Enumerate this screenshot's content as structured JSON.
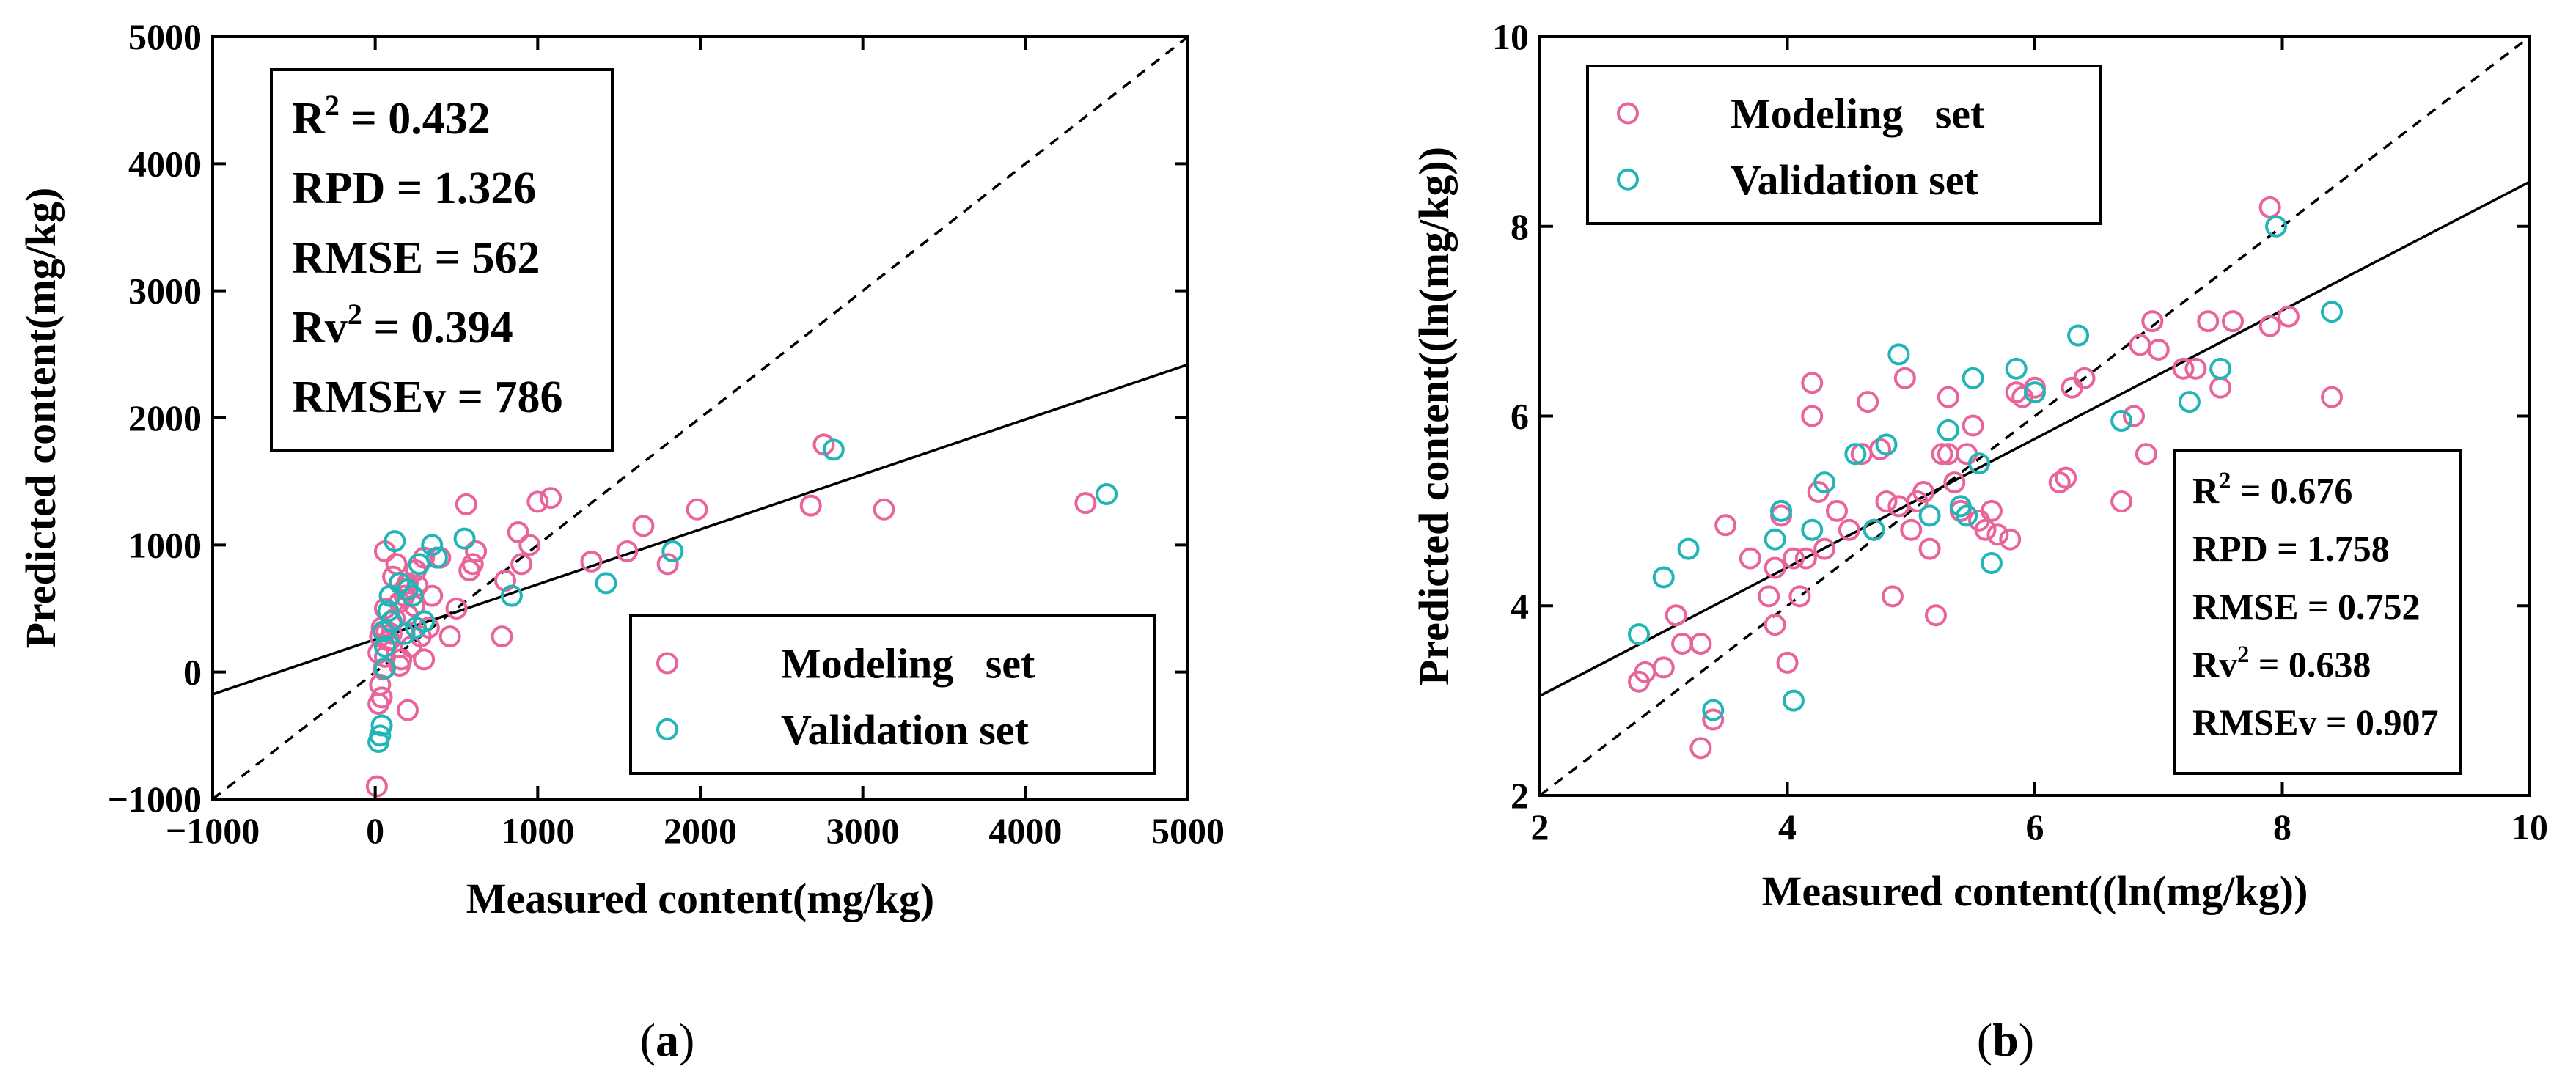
{
  "colors": {
    "modeling": "#E8649B",
    "validation": "#22B5B8",
    "fit_line": "#000000",
    "one_to_one": "#000000"
  },
  "chart_data": [
    {
      "type": "scatter",
      "panel_label": "(a)",
      "panel_letter": "a",
      "xlabel": "Measured content(mg/kg)",
      "ylabel": "Predicted content(mg/kg)",
      "xlim": [
        -1000,
        5000
      ],
      "ylim": [
        -1000,
        5000
      ],
      "xticks": [
        -1000,
        0,
        1000,
        2000,
        3000,
        4000,
        5000
      ],
      "yticks": [
        -1000,
        0,
        1000,
        2000,
        3000,
        4000,
        5000
      ],
      "xtick_labels": [
        "−1000",
        "0",
        "1000",
        "2000",
        "3000",
        "4000",
        "5000"
      ],
      "ytick_labels": [
        "−1000",
        "0",
        "1000",
        "2000",
        "3000",
        "4000",
        "5000"
      ],
      "stats": {
        "location": "top-left",
        "lines": [
          {
            "base": "R",
            "sup": "2",
            "rest": " = 0.432"
          },
          {
            "base": "RPD = 1.326",
            "sup": "",
            "rest": ""
          },
          {
            "base": "RMSE = 562",
            "sup": "",
            "rest": ""
          },
          {
            "base": "Rv",
            "sup": "2",
            "rest": " = 0.394"
          },
          {
            "base": "RMSEv = 786",
            "sup": "",
            "rest": ""
          }
        ]
      },
      "legend": {
        "location": "bottom-right",
        "entries": [
          "Modeling   set",
          "Validation set"
        ]
      },
      "fit_line": {
        "x": [
          -1000,
          5000
        ],
        "y": [
          -175,
          2420
        ]
      },
      "one_to_one": {
        "x": [
          -1000,
          5000
        ],
        "y": [
          -1000,
          5000
        ]
      },
      "series": [
        {
          "name": "Modeling   set",
          "color": "#E8649B",
          "points": [
            [
              10,
              -900
            ],
            [
              20,
              -250
            ],
            [
              40,
              -200
            ],
            [
              30,
              -100
            ],
            [
              50,
              20
            ],
            [
              60,
              120
            ],
            [
              20,
              150
            ],
            [
              80,
              250
            ],
            [
              100,
              300
            ],
            [
              40,
              350
            ],
            [
              120,
              420
            ],
            [
              60,
              500
            ],
            [
              150,
              550
            ],
            [
              90,
              600
            ],
            [
              180,
              650
            ],
            [
              200,
              700
            ],
            [
              110,
              750
            ],
            [
              250,
              800
            ],
            [
              130,
              850
            ],
            [
              300,
              900
            ],
            [
              60,
              950
            ],
            [
              160,
              100
            ],
            [
              220,
              200
            ],
            [
              280,
              280
            ],
            [
              330,
              350
            ],
            [
              200,
              450
            ],
            [
              240,
              520
            ],
            [
              180,
              600
            ],
            [
              260,
              680
            ],
            [
              90,
              250
            ],
            [
              150,
              50
            ],
            [
              200,
              -300
            ],
            [
              30,
              280
            ],
            [
              70,
              320
            ],
            [
              300,
              100
            ],
            [
              350,
              600
            ],
            [
              400,
              900
            ],
            [
              460,
              280
            ],
            [
              500,
              500
            ],
            [
              560,
              1320
            ],
            [
              580,
              800
            ],
            [
              600,
              850
            ],
            [
              620,
              950
            ],
            [
              780,
              280
            ],
            [
              800,
              720
            ],
            [
              880,
              1100
            ],
            [
              900,
              850
            ],
            [
              950,
              1000
            ],
            [
              1000,
              1340
            ],
            [
              1080,
              1370
            ],
            [
              1330,
              870
            ],
            [
              1550,
              950
            ],
            [
              1650,
              1150
            ],
            [
              1800,
              850
            ],
            [
              1980,
              1280
            ],
            [
              2680,
              1310
            ],
            [
              2760,
              1790
            ],
            [
              3130,
              1280
            ],
            [
              4370,
              1330
            ]
          ]
        },
        {
          "name": "Validation set",
          "color": "#22B5B8",
          "points": [
            [
              20,
              -550
            ],
            [
              40,
              -420
            ],
            [
              30,
              -500
            ],
            [
              60,
              30
            ],
            [
              50,
              320
            ],
            [
              80,
              480
            ],
            [
              120,
              1030
            ],
            [
              100,
              400
            ],
            [
              150,
              700
            ],
            [
              200,
              650
            ],
            [
              250,
              350
            ],
            [
              300,
              400
            ],
            [
              350,
              1000
            ],
            [
              380,
              900
            ],
            [
              180,
              300
            ],
            [
              230,
              600
            ],
            [
              270,
              850
            ],
            [
              550,
              1050
            ],
            [
              840,
              600
            ],
            [
              1420,
              700
            ],
            [
              1830,
              950
            ],
            [
              2820,
              1750
            ],
            [
              4500,
              1400
            ],
            [
              90,
              600
            ],
            [
              60,
              200
            ]
          ]
        }
      ]
    },
    {
      "type": "scatter",
      "panel_label": "(b)",
      "panel_letter": "b",
      "xlabel": "Measured content((ln(mg/kg))",
      "ylabel": "Predicted content((ln(mg/kg))",
      "xlim": [
        2,
        10
      ],
      "ylim": [
        2,
        10
      ],
      "xticks": [
        2,
        4,
        6,
        8,
        10
      ],
      "yticks": [
        2,
        4,
        6,
        8,
        10
      ],
      "xtick_labels": [
        "2",
        "4",
        "6",
        "8",
        "10"
      ],
      "ytick_labels": [
        "2",
        "4",
        "6",
        "8",
        "10"
      ],
      "stats": {
        "location": "bottom-right",
        "lines": [
          {
            "base": "R",
            "sup": "2",
            "rest": " = 0.676"
          },
          {
            "base": "RPD = 1.758",
            "sup": "",
            "rest": ""
          },
          {
            "base": "RMSE = 0.752",
            "sup": "",
            "rest": ""
          },
          {
            "base": "Rv",
            "sup": "2",
            "rest": " = 0.638"
          },
          {
            "base": "RMSEv = 0.907",
            "sup": "",
            "rest": ""
          }
        ]
      },
      "legend": {
        "location": "top-left",
        "entries": [
          "Modeling   set",
          "Validation set"
        ]
      },
      "fit_line": {
        "x": [
          2,
          10
        ],
        "y": [
          3.05,
          8.47
        ]
      },
      "one_to_one": {
        "x": [
          2,
          10
        ],
        "y": [
          2,
          10
        ]
      },
      "series": [
        {
          "name": "Modeling   set",
          "color": "#E8649B",
          "points": [
            [
              2.8,
              3.2
            ],
            [
              2.85,
              3.3
            ],
            [
              3.0,
              3.35
            ],
            [
              3.1,
              3.9
            ],
            [
              3.15,
              3.6
            ],
            [
              3.3,
              2.5
            ],
            [
              3.3,
              3.6
            ],
            [
              3.4,
              2.8
            ],
            [
              3.5,
              4.85
            ],
            [
              3.7,
              4.5
            ],
            [
              3.85,
              4.1
            ],
            [
              3.9,
              3.8
            ],
            [
              3.9,
              4.4
            ],
            [
              3.95,
              4.95
            ],
            [
              4.0,
              3.4
            ],
            [
              4.05,
              4.5
            ],
            [
              4.1,
              4.1
            ],
            [
              4.15,
              4.5
            ],
            [
              4.2,
              6.35
            ],
            [
              4.2,
              6.0
            ],
            [
              4.25,
              5.2
            ],
            [
              4.3,
              4.6
            ],
            [
              4.4,
              5.0
            ],
            [
              4.5,
              4.8
            ],
            [
              4.6,
              5.6
            ],
            [
              4.65,
              6.15
            ],
            [
              4.7,
              4.8
            ],
            [
              4.75,
              5.65
            ],
            [
              4.8,
              5.1
            ],
            [
              4.85,
              4.1
            ],
            [
              4.9,
              5.05
            ],
            [
              4.95,
              6.4
            ],
            [
              5.0,
              4.8
            ],
            [
              5.05,
              5.1
            ],
            [
              5.1,
              5.2
            ],
            [
              5.15,
              4.6
            ],
            [
              5.2,
              3.9
            ],
            [
              5.25,
              5.6
            ],
            [
              5.3,
              6.2
            ],
            [
              5.35,
              5.3
            ],
            [
              5.4,
              5.0
            ],
            [
              5.45,
              5.6
            ],
            [
              5.5,
              5.9
            ],
            [
              5.55,
              4.9
            ],
            [
              5.6,
              4.8
            ],
            [
              5.65,
              5.0
            ],
            [
              5.7,
              4.75
            ],
            [
              5.8,
              4.7
            ],
            [
              5.85,
              6.25
            ],
            [
              5.9,
              6.2
            ],
            [
              6.2,
              5.3
            ],
            [
              6.25,
              5.35
            ],
            [
              6.3,
              6.3
            ],
            [
              6.4,
              6.4
            ],
            [
              6.7,
              5.1
            ],
            [
              6.8,
              6.0
            ],
            [
              6.85,
              6.75
            ],
            [
              6.9,
              5.6
            ],
            [
              6.95,
              7.0
            ],
            [
              7.0,
              6.7
            ],
            [
              7.2,
              6.5
            ],
            [
              7.3,
              6.5
            ],
            [
              7.4,
              7.0
            ],
            [
              7.5,
              6.3
            ],
            [
              7.6,
              7.0
            ],
            [
              7.9,
              6.95
            ],
            [
              7.9,
              8.2
            ],
            [
              8.05,
              7.05
            ],
            [
              8.4,
              6.2
            ],
            [
              5.3,
              5.6
            ],
            [
              6.0,
              6.3
            ]
          ]
        },
        {
          "name": "Validation set",
          "color": "#22B5B8",
          "points": [
            [
              2.8,
              3.7
            ],
            [
              3.0,
              4.3
            ],
            [
              3.2,
              4.6
            ],
            [
              3.4,
              2.9
            ],
            [
              3.9,
              4.7
            ],
            [
              3.95,
              5.0
            ],
            [
              4.05,
              3.0
            ],
            [
              4.2,
              4.8
            ],
            [
              4.3,
              5.3
            ],
            [
              4.55,
              5.6
            ],
            [
              4.7,
              4.8
            ],
            [
              4.8,
              5.7
            ],
            [
              4.9,
              6.65
            ],
            [
              5.15,
              4.95
            ],
            [
              5.3,
              5.85
            ],
            [
              5.4,
              5.05
            ],
            [
              5.45,
              4.95
            ],
            [
              5.55,
              5.5
            ],
            [
              5.65,
              4.45
            ],
            [
              5.85,
              6.5
            ],
            [
              6.0,
              6.25
            ],
            [
              6.35,
              6.85
            ],
            [
              6.7,
              5.95
            ],
            [
              7.25,
              6.15
            ],
            [
              7.5,
              6.5
            ],
            [
              7.95,
              8.0
            ],
            [
              8.4,
              7.1
            ],
            [
              5.5,
              6.4
            ]
          ]
        }
      ]
    }
  ]
}
